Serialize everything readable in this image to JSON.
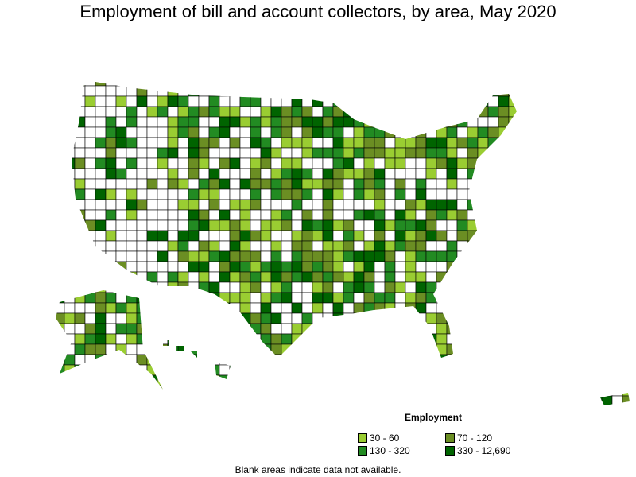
{
  "title": "Employment of bill and account collectors, by area, May 2020",
  "legend": {
    "title": "Employment",
    "items": [
      {
        "label": "30 - 60",
        "color": "#9ACD32"
      },
      {
        "label": "70 - 120",
        "color": "#6B8E23"
      },
      {
        "label": "130 - 320",
        "color": "#228B22"
      },
      {
        "label": "330 - 12,690",
        "color": "#006400"
      }
    ]
  },
  "note": "Blank areas indicate data not available."
}
